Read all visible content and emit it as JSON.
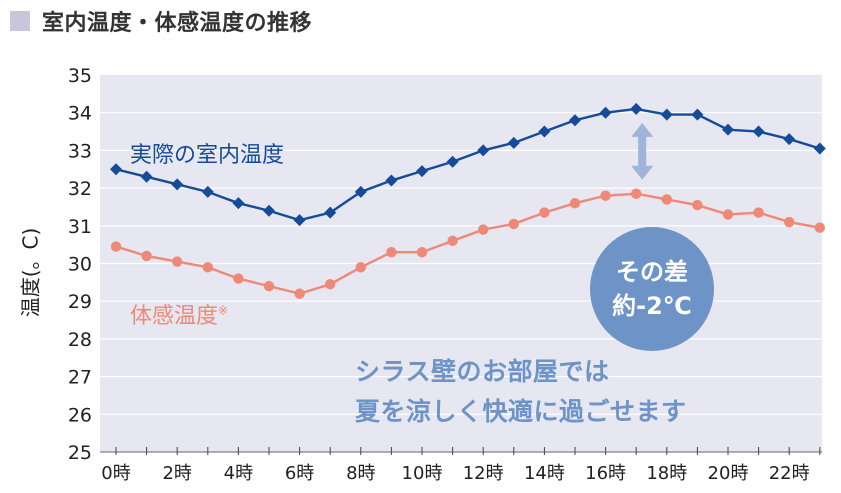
{
  "title": "室内温度・体感温度の推移",
  "colors": {
    "title_square": "#c9c6d9",
    "plot_bg": "#e6e7f1",
    "grid": "#ffffff",
    "actual": "#154b98",
    "feel": "#ee8877",
    "arrow": "#9fb4d8",
    "bubble": "#6d93c7",
    "message": "#6d93c7"
  },
  "annotations": {
    "actual_label": "実際の室内温度",
    "feel_label": "体感温度",
    "feel_mark": "※",
    "difference_line1": "その差",
    "difference_line2": "約-2℃",
    "message_line1": "シラス壁のお部屋では",
    "message_line2": "夏を涼しく快適に過ごせます"
  },
  "chart_data": {
    "type": "line",
    "title": "室内温度・体感温度の推移",
    "ylabel": "温度(。C)",
    "xlabel": "",
    "ylim": [
      25,
      35
    ],
    "yticks": [
      "25",
      "26",
      "27",
      "28",
      "29",
      "30",
      "31",
      "32",
      "33",
      "34",
      "35"
    ],
    "xlim": [
      0,
      23
    ],
    "xticks": [
      "0時",
      "2時",
      "4時",
      "6時",
      "8時",
      "10時",
      "12時",
      "14時",
      "16時",
      "18時",
      "20時",
      "22時"
    ],
    "x": [
      0,
      1,
      2,
      3,
      4,
      5,
      6,
      7,
      8,
      9,
      10,
      11,
      12,
      13,
      14,
      15,
      16,
      17,
      18,
      19,
      20,
      21,
      22,
      23
    ],
    "grid": true,
    "legend": "none",
    "series": [
      {
        "name": "実際の室内温度",
        "marker": "diamond",
        "values": [
          32.5,
          32.3,
          32.1,
          31.9,
          31.6,
          31.4,
          31.15,
          31.35,
          31.9,
          32.2,
          32.45,
          32.7,
          33.0,
          33.2,
          33.5,
          33.8,
          34.0,
          34.1,
          33.95,
          33.95,
          33.55,
          33.5,
          33.3,
          33.05
        ]
      },
      {
        "name": "体感温度",
        "marker": "circle",
        "values": [
          30.45,
          30.2,
          30.05,
          29.9,
          29.6,
          29.4,
          29.2,
          29.45,
          29.9,
          30.3,
          30.3,
          30.6,
          30.9,
          31.05,
          31.35,
          31.6,
          31.8,
          31.85,
          31.7,
          31.55,
          31.3,
          31.35,
          31.1,
          30.95
        ]
      }
    ]
  }
}
